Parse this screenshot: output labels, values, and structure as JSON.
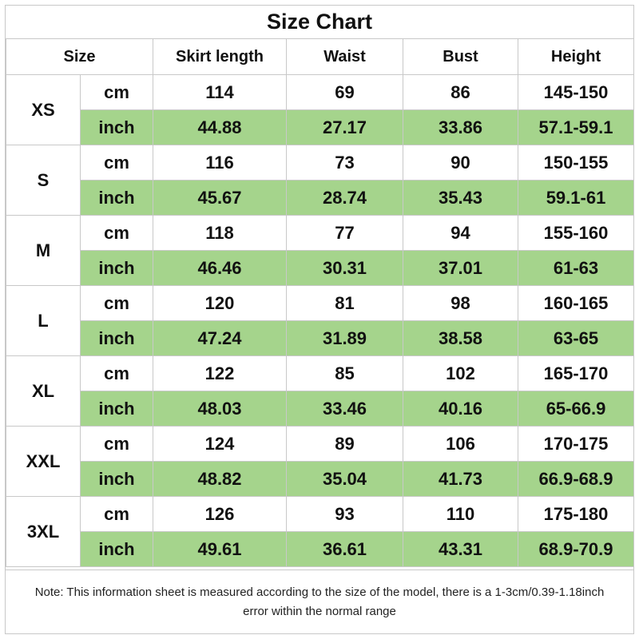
{
  "title": "Size Chart",
  "headers": [
    "Size",
    "Skirt length",
    "Waist",
    "Bust",
    "Height"
  ],
  "units": {
    "cm": "cm",
    "inch": "inch"
  },
  "sizes": [
    {
      "size": "XS",
      "cm": [
        "114",
        "69",
        "86",
        "145-150"
      ],
      "inch": [
        "44.88",
        "27.17",
        "33.86",
        "57.1-59.1"
      ]
    },
    {
      "size": "S",
      "cm": [
        "116",
        "73",
        "90",
        "150-155"
      ],
      "inch": [
        "45.67",
        "28.74",
        "35.43",
        "59.1-61"
      ]
    },
    {
      "size": "M",
      "cm": [
        "118",
        "77",
        "94",
        "155-160"
      ],
      "inch": [
        "46.46",
        "30.31",
        "37.01",
        "61-63"
      ]
    },
    {
      "size": "L",
      "cm": [
        "120",
        "81",
        "98",
        "160-165"
      ],
      "inch": [
        "47.24",
        "31.89",
        "38.58",
        "63-65"
      ]
    },
    {
      "size": "XL",
      "cm": [
        "122",
        "85",
        "102",
        "165-170"
      ],
      "inch": [
        "48.03",
        "33.46",
        "40.16",
        "65-66.9"
      ]
    },
    {
      "size": "XXL",
      "cm": [
        "124",
        "89",
        "106",
        "170-175"
      ],
      "inch": [
        "48.82",
        "35.04",
        "41.73",
        "66.9-68.9"
      ]
    },
    {
      "size": "3XL",
      "cm": [
        "126",
        "93",
        "110",
        "175-180"
      ],
      "inch": [
        "49.61",
        "36.61",
        "43.31",
        "68.9-70.9"
      ]
    }
  ],
  "note": "Note: This information sheet is measured according to the size of the model, there is a 1-3cm/0.39-1.18inch error within the normal range",
  "colors": {
    "inch_row_bg": "#a5d48c",
    "grid_line": "#c8c8c8"
  }
}
